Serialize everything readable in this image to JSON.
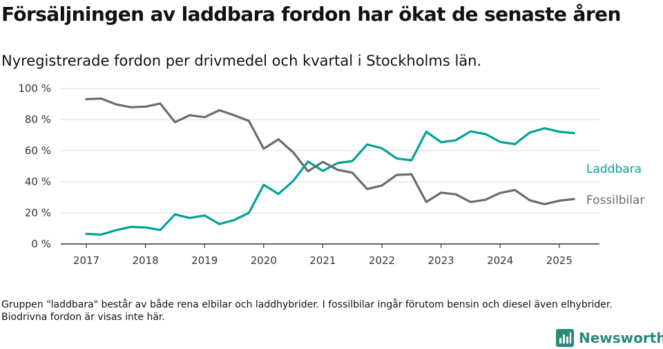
{
  "title": "Försäljningen av laddbara fordon har ökat de senaste åren",
  "subtitle": "Nyregistrerade fordon per drivmedel och kvartal i Stockholms län.",
  "footnote": "Gruppen \"laddbara\" består av både rena elbilar och laddhybrider. I fossilbilar ingår förutom bensin och diesel även elhybrider. Biodrivna fordon är visas inte här.",
  "brand": {
    "name": "Newsworthy",
    "icon": "bar-chart-icon",
    "color": "#2b8a7e"
  },
  "chart_data": {
    "type": "line",
    "title": "",
    "xlabel": "",
    "ylabel": "",
    "ylim": [
      0,
      100
    ],
    "yticks": [
      0,
      20,
      40,
      60,
      80,
      100
    ],
    "ytick_labels": [
      "0 %",
      "20 %",
      "40 %",
      "60 %",
      "80 %",
      "100 %"
    ],
    "xticks": [
      "2017",
      "2018",
      "2019",
      "2020",
      "2021",
      "2022",
      "2023",
      "2024",
      "2025"
    ],
    "x": [
      "2017 Q1",
      "2017 Q2",
      "2017 Q3",
      "2017 Q4",
      "2018 Q1",
      "2018 Q2",
      "2018 Q3",
      "2018 Q4",
      "2019 Q1",
      "2019 Q2",
      "2019 Q3",
      "2019 Q4",
      "2020 Q1",
      "2020 Q2",
      "2020 Q3",
      "2020 Q4",
      "2021 Q1",
      "2021 Q2",
      "2021 Q3",
      "2021 Q4",
      "2022 Q1",
      "2022 Q2",
      "2022 Q3",
      "2022 Q4",
      "2023 Q1",
      "2023 Q2",
      "2023 Q3",
      "2023 Q4",
      "2024 Q1",
      "2024 Q2",
      "2024 Q3",
      "2024 Q4",
      "2025 Q1",
      "2025 Q2"
    ],
    "grid": true,
    "legend": "inline-right",
    "series": [
      {
        "name": "Laddbara",
        "color": "#00a298",
        "values": [
          6.5,
          6,
          8.8,
          11,
          10.6,
          9,
          19,
          16.7,
          18.3,
          12.8,
          15.4,
          20,
          38,
          32.2,
          40.5,
          53,
          47,
          52,
          53.3,
          64,
          61.5,
          55,
          53.8,
          72.2,
          65.4,
          66.7,
          72.4,
          70.7,
          65.6,
          64.2,
          71.6,
          74.4,
          72.2,
          71.3
        ]
      },
      {
        "name": "Fossilbilar",
        "color": "#6b6b6f",
        "values": [
          93.1,
          93.5,
          89.8,
          87.9,
          88.3,
          90.3,
          78.3,
          82.8,
          81.5,
          86,
          82.8,
          79.1,
          61.3,
          67.3,
          58.9,
          46.7,
          52.8,
          47.7,
          45.8,
          35.3,
          37.6,
          44.4,
          44.8,
          27,
          33,
          31.9,
          27,
          28.4,
          32.8,
          34.7,
          28.1,
          25.6,
          27.8,
          28.9
        ]
      }
    ]
  }
}
